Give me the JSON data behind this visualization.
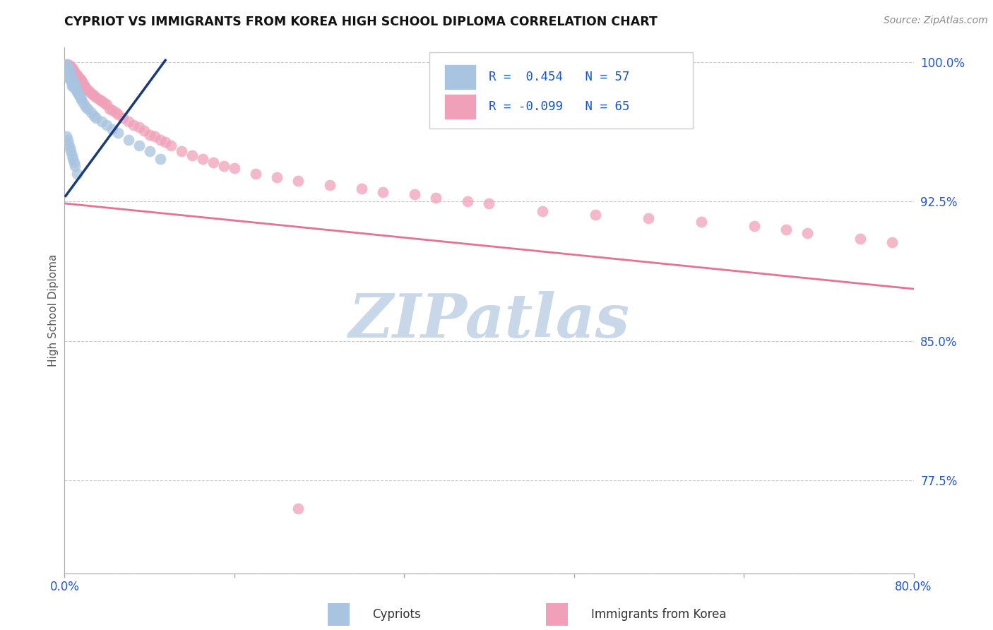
{
  "title": "CYPRIOT VS IMMIGRANTS FROM KOREA HIGH SCHOOL DIPLOMA CORRELATION CHART",
  "source": "Source: ZipAtlas.com",
  "ylabel": "High School Diploma",
  "xlabel_cypriot": "Cypriots",
  "xlabel_korea": "Immigrants from Korea",
  "xmin": 0.0,
  "xmax": 0.8,
  "ymin": 0.725,
  "ymax": 1.008,
  "right_yticks": [
    1.0,
    0.925,
    0.85,
    0.775
  ],
  "right_ytick_labels": [
    "100.0%",
    "92.5%",
    "85.0%",
    "77.5%"
  ],
  "legend_R_blue": "0.454",
  "legend_N_blue": "57",
  "legend_R_pink": "-0.099",
  "legend_N_pink": "65",
  "blue_scatter_color": "#a8c4e0",
  "pink_scatter_color": "#f0a0b8",
  "blue_line_color": "#1a3a7a",
  "pink_line_color": "#e87090",
  "watermark_color": "#c8d8e8",
  "grid_color": "#cccccc",
  "title_color": "#111111",
  "axis_label_color": "#555555",
  "tick_color": "#2255cc",
  "source_color": "#888888",
  "legend_text_color": "#1a55cc",
  "blue_line_x": [
    0.001,
    0.095
  ],
  "blue_line_y": [
    0.928,
    1.001
  ],
  "pink_line_x": [
    0.0,
    0.8
  ],
  "pink_line_y": [
    0.924,
    0.878
  ],
  "cypriot_x": [
    0.001,
    0.001,
    0.001,
    0.001,
    0.002,
    0.002,
    0.002,
    0.003,
    0.003,
    0.003,
    0.004,
    0.004,
    0.004,
    0.005,
    0.005,
    0.005,
    0.006,
    0.006,
    0.007,
    0.007,
    0.007,
    0.008,
    0.008,
    0.009,
    0.009,
    0.01,
    0.01,
    0.011,
    0.012,
    0.013,
    0.014,
    0.015,
    0.016,
    0.018,
    0.02,
    0.022,
    0.025,
    0.028,
    0.03,
    0.035,
    0.04,
    0.045,
    0.05,
    0.06,
    0.07,
    0.08,
    0.09,
    0.002,
    0.003,
    0.004,
    0.005,
    0.006,
    0.007,
    0.008,
    0.009,
    0.01,
    0.012
  ],
  "cypriot_y": [
    0.999,
    0.997,
    0.995,
    0.993,
    0.998,
    0.996,
    0.994,
    0.997,
    0.995,
    0.993,
    0.996,
    0.994,
    0.992,
    0.995,
    0.993,
    0.991,
    0.992,
    0.99,
    0.991,
    0.989,
    0.987,
    0.99,
    0.988,
    0.989,
    0.987,
    0.988,
    0.986,
    0.985,
    0.984,
    0.983,
    0.982,
    0.981,
    0.98,
    0.978,
    0.976,
    0.975,
    0.973,
    0.971,
    0.97,
    0.968,
    0.966,
    0.964,
    0.962,
    0.958,
    0.955,
    0.952,
    0.948,
    0.96,
    0.958,
    0.956,
    0.954,
    0.952,
    0.95,
    0.948,
    0.946,
    0.944,
    0.94
  ],
  "korea_x": [
    0.003,
    0.005,
    0.006,
    0.007,
    0.008,
    0.009,
    0.01,
    0.011,
    0.012,
    0.013,
    0.015,
    0.016,
    0.017,
    0.018,
    0.019,
    0.02,
    0.022,
    0.024,
    0.026,
    0.028,
    0.03,
    0.033,
    0.035,
    0.038,
    0.04,
    0.042,
    0.045,
    0.048,
    0.05,
    0.055,
    0.06,
    0.065,
    0.07,
    0.075,
    0.08,
    0.085,
    0.09,
    0.095,
    0.1,
    0.11,
    0.12,
    0.13,
    0.14,
    0.15,
    0.16,
    0.18,
    0.2,
    0.22,
    0.25,
    0.28,
    0.3,
    0.33,
    0.35,
    0.38,
    0.4,
    0.45,
    0.5,
    0.55,
    0.6,
    0.65,
    0.68,
    0.7,
    0.75,
    0.78,
    0.22
  ],
  "korea_y": [
    0.999,
    0.998,
    0.997,
    0.997,
    0.996,
    0.995,
    0.994,
    0.993,
    0.993,
    0.992,
    0.991,
    0.99,
    0.989,
    0.988,
    0.987,
    0.986,
    0.985,
    0.984,
    0.983,
    0.982,
    0.981,
    0.98,
    0.979,
    0.978,
    0.977,
    0.975,
    0.974,
    0.973,
    0.972,
    0.97,
    0.968,
    0.966,
    0.965,
    0.963,
    0.961,
    0.96,
    0.958,
    0.957,
    0.955,
    0.952,
    0.95,
    0.948,
    0.946,
    0.944,
    0.943,
    0.94,
    0.938,
    0.936,
    0.934,
    0.932,
    0.93,
    0.929,
    0.927,
    0.925,
    0.924,
    0.92,
    0.918,
    0.916,
    0.914,
    0.912,
    0.91,
    0.908,
    0.905,
    0.903,
    0.76
  ]
}
